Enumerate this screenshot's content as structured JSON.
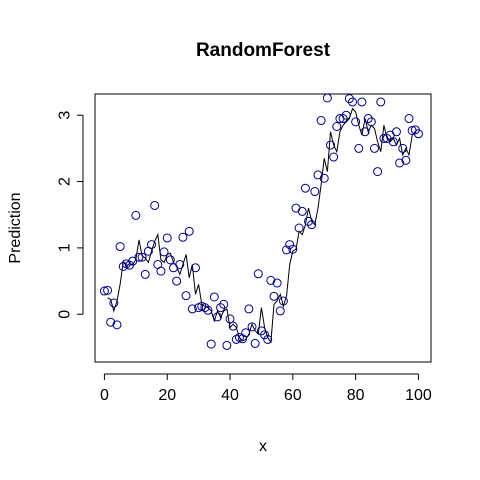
{
  "chart_data": {
    "type": "scatter",
    "title": "RandomForest",
    "xlabel": "x",
    "ylabel": "Prediction",
    "xlim": [
      -3,
      104
    ],
    "ylim": [
      -0.72,
      3.32
    ],
    "x_ticks": [
      0,
      20,
      40,
      60,
      80,
      100
    ],
    "y_ticks": [
      0,
      1,
      2,
      3
    ],
    "grid": false,
    "legend": "none",
    "colors": {
      "points": "#00008B",
      "line": "#000000",
      "frame": "#000000"
    },
    "series": [
      {
        "type": "points",
        "x": [
          0,
          1,
          2,
          3,
          4,
          5,
          6,
          7,
          8,
          9,
          10,
          11,
          12,
          13,
          14,
          15,
          16,
          17,
          18,
          19,
          20,
          21,
          22,
          23,
          24,
          25,
          26,
          27,
          28,
          29,
          30,
          31,
          32,
          33,
          34,
          35,
          36,
          37,
          38,
          39,
          40,
          41,
          42,
          43,
          44,
          45,
          46,
          47,
          48,
          49,
          50,
          51,
          52,
          53,
          54,
          55,
          56,
          57,
          58,
          59,
          60,
          61,
          62,
          63,
          64,
          65,
          66,
          67,
          68,
          69,
          70,
          71,
          72,
          73,
          74,
          75,
          76,
          77,
          78,
          79,
          80,
          81,
          82,
          83,
          84,
          85,
          86,
          87,
          88,
          89,
          90,
          91,
          92,
          93,
          94,
          95,
          96,
          97,
          98,
          99,
          100
        ],
        "y": [
          0.35,
          0.36,
          -0.12,
          0.17,
          -0.16,
          1.02,
          0.72,
          0.76,
          0.74,
          0.8,
          1.49,
          0.86,
          0.86,
          0.6,
          0.95,
          1.05,
          1.64,
          0.75,
          0.65,
          0.94,
          1.15,
          0.82,
          0.7,
          0.5,
          0.75,
          1.16,
          0.28,
          1.25,
          0.08,
          0.7,
          0.1,
          0.12,
          0.1,
          0.06,
          -0.45,
          0.26,
          -0.04,
          0.1,
          0.15,
          -0.47,
          -0.07,
          -0.18,
          -0.38,
          -0.35,
          -0.37,
          -0.28,
          0.08,
          -0.19,
          -0.44,
          0.61,
          -0.25,
          -0.31,
          -0.38,
          0.51,
          0.27,
          0.47,
          0.05,
          0.2,
          0.97,
          1.05,
          0.98,
          1.6,
          1.3,
          1.55,
          1.9,
          1.4,
          1.35,
          1.85,
          2.1,
          2.92,
          2.05,
          3.26,
          2.55,
          2.37,
          2.83,
          2.95,
          2.95,
          3.0,
          3.25,
          3.2,
          2.9,
          2.5,
          3.2,
          2.75,
          2.95,
          2.9,
          2.5,
          2.15,
          3.2,
          2.65,
          2.65,
          2.7,
          2.6,
          2.75,
          2.28,
          2.5,
          2.32,
          2.95,
          2.77,
          2.78,
          2.72
        ]
      },
      {
        "type": "line",
        "x": [
          1,
          2,
          3,
          4,
          5,
          6,
          7,
          8,
          9,
          10,
          11,
          12,
          13,
          14,
          15,
          16,
          17,
          18,
          19,
          20,
          21,
          22,
          23,
          24,
          25,
          26,
          27,
          28,
          29,
          30,
          31,
          32,
          33,
          34,
          35,
          36,
          37,
          38,
          39,
          40,
          41,
          42,
          43,
          44,
          45,
          46,
          47,
          48,
          49,
          50,
          51,
          52,
          53,
          54,
          55,
          56,
          57,
          58,
          59,
          60,
          61,
          62,
          63,
          64,
          65,
          66,
          67,
          68,
          69,
          70,
          71,
          72,
          73,
          74,
          75,
          76,
          77,
          78,
          79,
          80,
          81,
          82,
          83,
          84,
          85,
          86,
          87,
          88,
          89,
          90,
          91,
          92,
          93,
          94,
          95,
          96,
          97,
          98,
          99
        ],
        "y": [
          0.25,
          0.22,
          0.05,
          0.2,
          0.45,
          0.8,
          0.72,
          0.76,
          0.75,
          0.82,
          1.12,
          0.88,
          0.85,
          0.78,
          0.95,
          1.1,
          1.2,
          0.82,
          0.78,
          0.9,
          0.92,
          0.78,
          0.72,
          0.6,
          0.75,
          0.9,
          0.55,
          0.75,
          0.3,
          0.45,
          0.15,
          0.12,
          0.1,
          0.05,
          -0.1,
          0.05,
          -0.05,
          0.05,
          0.08,
          -0.2,
          -0.15,
          -0.2,
          -0.35,
          -0.4,
          -0.38,
          -0.3,
          -0.15,
          -0.25,
          -0.3,
          0.1,
          -0.2,
          -0.35,
          -0.42,
          0.15,
          0.2,
          0.3,
          0.12,
          0.28,
          0.75,
          0.95,
          0.98,
          1.25,
          1.2,
          1.35,
          1.6,
          1.4,
          1.35,
          1.6,
          1.95,
          2.35,
          2.15,
          2.75,
          2.55,
          2.45,
          2.75,
          2.85,
          2.9,
          2.95,
          3.1,
          3.05,
          2.85,
          2.7,
          2.95,
          2.75,
          2.85,
          2.8,
          2.6,
          2.45,
          2.85,
          2.65,
          2.6,
          2.65,
          2.55,
          2.65,
          2.4,
          2.5,
          2.4,
          2.7,
          2.75
        ]
      }
    ]
  }
}
